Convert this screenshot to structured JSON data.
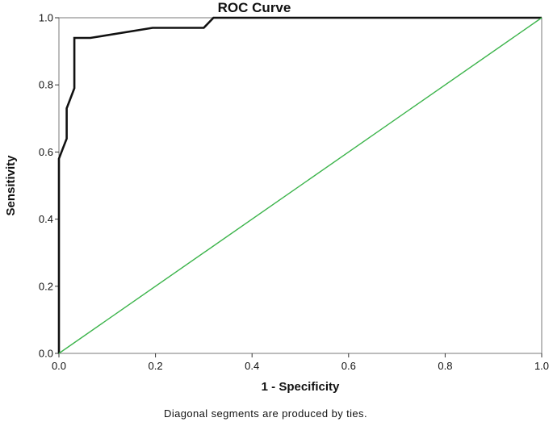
{
  "chart_data": {
    "type": "line",
    "title": "ROC Curve",
    "xlabel": "1 - Specificity",
    "ylabel": "Sensitivity",
    "footnote": "Diagonal segments are produced by ties.",
    "xlim": [
      0,
      1
    ],
    "ylim": [
      0,
      1
    ],
    "x_ticks": [
      "0.0",
      "0.2",
      "0.4",
      "0.6",
      "0.8",
      "1.0"
    ],
    "y_ticks": [
      "0.0",
      "0.2",
      "0.4",
      "0.6",
      "0.8",
      "1.0"
    ],
    "grid": false,
    "series": [
      {
        "color": "#111111",
        "points": [
          [
            0.0,
            0.0
          ],
          [
            0.0,
            0.58
          ],
          [
            0.008,
            0.61
          ],
          [
            0.016,
            0.64
          ],
          [
            0.016,
            0.67
          ],
          [
            0.016,
            0.73
          ],
          [
            0.032,
            0.79
          ],
          [
            0.032,
            0.94
          ],
          [
            0.065,
            0.94
          ],
          [
            0.194,
            0.97
          ],
          [
            0.3,
            0.97
          ],
          [
            0.32,
            1.0
          ],
          [
            1.0,
            1.0
          ]
        ]
      },
      {
        "color": "#3cb44b",
        "points": [
          [
            0.0,
            0.0
          ],
          [
            1.0,
            1.0
          ]
        ]
      }
    ]
  }
}
